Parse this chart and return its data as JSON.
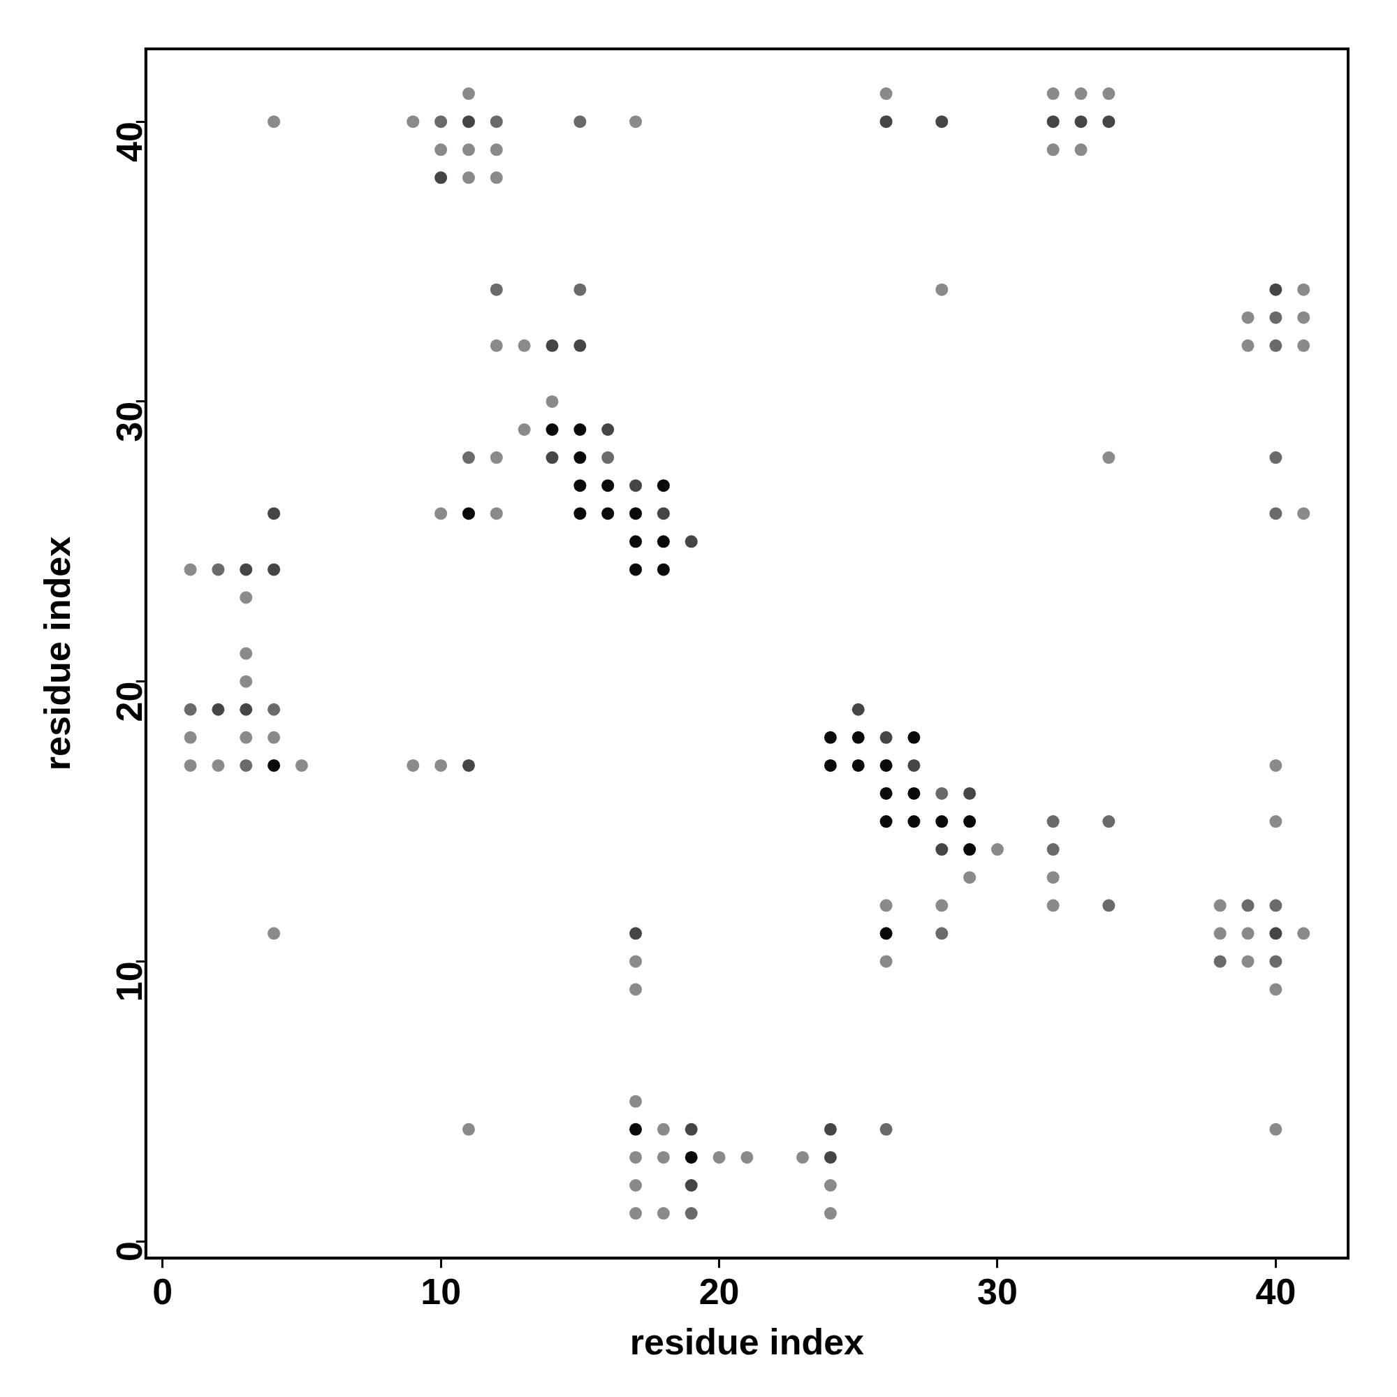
{
  "chart_data": {
    "type": "scatter",
    "xlabel": "residue index",
    "ylabel": "residue index",
    "xlim": [
      -0.6,
      42.6
    ],
    "ylim": [
      -0.6,
      42.6
    ],
    "xticks": [
      0,
      10,
      20,
      30,
      40
    ],
    "yticks": [
      0,
      10,
      20,
      30,
      40
    ],
    "grid": false,
    "legend": false,
    "marker": "circle",
    "x": [
      11,
      26,
      32,
      33,
      34,
      4,
      9,
      10,
      11,
      12,
      15,
      17,
      26,
      28,
      32,
      33,
      34,
      10,
      11,
      12,
      32,
      33,
      10,
      11,
      12,
      12,
      15,
      28,
      40,
      41,
      39,
      40,
      41,
      12,
      13,
      14,
      15,
      39,
      40,
      41,
      14,
      13,
      14,
      15,
      16,
      11,
      12,
      14,
      15,
      16,
      34,
      40,
      15,
      16,
      17,
      18,
      4,
      10,
      11,
      12,
      15,
      16,
      17,
      18,
      40,
      41,
      17,
      18,
      19,
      1,
      2,
      3,
      4,
      17,
      18,
      3,
      3,
      3,
      1,
      2,
      3,
      4,
      25,
      1,
      3,
      4,
      24,
      25,
      26,
      27,
      1,
      2,
      3,
      4,
      5,
      9,
      10,
      11,
      24,
      25,
      26,
      27,
      40,
      26,
      27,
      28,
      29,
      26,
      27,
      28,
      29,
      32,
      34,
      40,
      28,
      29,
      30,
      32,
      29,
      32,
      26,
      28,
      32,
      34,
      38,
      39,
      40,
      4,
      17,
      26,
      28,
      38,
      39,
      40,
      41,
      17,
      26,
      38,
      39,
      40,
      17,
      40,
      17,
      11,
      17,
      18,
      19,
      24,
      26,
      40,
      17,
      18,
      19,
      20,
      21,
      23,
      24,
      17,
      19,
      24,
      17,
      18,
      19,
      24
    ],
    "values": [
      41,
      41,
      41,
      41,
      41,
      40,
      40,
      40,
      40,
      40,
      40,
      40,
      40,
      40,
      40,
      40,
      40,
      39,
      39,
      39,
      39,
      39,
      38,
      38,
      38,
      34,
      34,
      34,
      34,
      34,
      33,
      33,
      33,
      32,
      32,
      32,
      32,
      32,
      32,
      32,
      30,
      29,
      29,
      29,
      29,
      28,
      28,
      28,
      28,
      28,
      28,
      28,
      27,
      27,
      27,
      27,
      26,
      26,
      26,
      26,
      26,
      26,
      26,
      26,
      26,
      26,
      25,
      25,
      25,
      24,
      24,
      24,
      24,
      24,
      24,
      23,
      21,
      20,
      19,
      19,
      19,
      19,
      19,
      18,
      18,
      18,
      18,
      18,
      18,
      18,
      17,
      17,
      17,
      17,
      17,
      17,
      17,
      17,
      17,
      17,
      17,
      17,
      17,
      16,
      16,
      16,
      16,
      15,
      15,
      15,
      15,
      15,
      15,
      15,
      14,
      14,
      14,
      14,
      13,
      13,
      12,
      12,
      12,
      12,
      12,
      12,
      12,
      11,
      11,
      11,
      11,
      11,
      11,
      11,
      11,
      10,
      10,
      10,
      10,
      10,
      9,
      9,
      5,
      4,
      4,
      4,
      4,
      4,
      4,
      4,
      3,
      3,
      3,
      3,
      3,
      3,
      3,
      2,
      2,
      2,
      1,
      1,
      1,
      1
    ],
    "colors": [
      "#8a8a8a",
      "#8a8a8a",
      "#8a8a8a",
      "#8a8a8a",
      "#8a8a8a",
      "#8a8a8a",
      "#8a8a8a",
      "#6a6a6a",
      "#454545",
      "#6a6a6a",
      "#6a6a6a",
      "#8a8a8a",
      "#454545",
      "#454545",
      "#454545",
      "#454545",
      "#454545",
      "#8a8a8a",
      "#8a8a8a",
      "#8a8a8a",
      "#8a8a8a",
      "#8a8a8a",
      "#454545",
      "#8a8a8a",
      "#8a8a8a",
      "#6a6a6a",
      "#6a6a6a",
      "#8a8a8a",
      "#454545",
      "#8a8a8a",
      "#8a8a8a",
      "#6a6a6a",
      "#8a8a8a",
      "#8a8a8a",
      "#8a8a8a",
      "#454545",
      "#454545",
      "#8a8a8a",
      "#6a6a6a",
      "#8a8a8a",
      "#8a8a8a",
      "#8a8a8a",
      "#0a0a0a",
      "#0a0a0a",
      "#454545",
      "#6a6a6a",
      "#8a8a8a",
      "#454545",
      "#0a0a0a",
      "#6a6a6a",
      "#8a8a8a",
      "#6a6a6a",
      "#0a0a0a",
      "#0a0a0a",
      "#454545",
      "#0a0a0a",
      "#454545",
      "#8a8a8a",
      "#0a0a0a",
      "#8a8a8a",
      "#0a0a0a",
      "#0a0a0a",
      "#0a0a0a",
      "#454545",
      "#6a6a6a",
      "#8a8a8a",
      "#0a0a0a",
      "#0a0a0a",
      "#454545",
      "#8a8a8a",
      "#6a6a6a",
      "#454545",
      "#454545",
      "#0a0a0a",
      "#0a0a0a",
      "#8a8a8a",
      "#8a8a8a",
      "#8a8a8a",
      "#6a6a6a",
      "#454545",
      "#454545",
      "#6a6a6a",
      "#454545",
      "#8a8a8a",
      "#8a8a8a",
      "#8a8a8a",
      "#0a0a0a",
      "#0a0a0a",
      "#454545",
      "#0a0a0a",
      "#8a8a8a",
      "#8a8a8a",
      "#6a6a6a",
      "#0a0a0a",
      "#8a8a8a",
      "#8a8a8a",
      "#8a8a8a",
      "#454545",
      "#0a0a0a",
      "#0a0a0a",
      "#0a0a0a",
      "#454545",
      "#8a8a8a",
      "#0a0a0a",
      "#0a0a0a",
      "#6a6a6a",
      "#454545",
      "#0a0a0a",
      "#0a0a0a",
      "#0a0a0a",
      "#0a0a0a",
      "#6a6a6a",
      "#6a6a6a",
      "#8a8a8a",
      "#454545",
      "#0a0a0a",
      "#8a8a8a",
      "#6a6a6a",
      "#8a8a8a",
      "#8a8a8a",
      "#8a8a8a",
      "#8a8a8a",
      "#8a8a8a",
      "#6a6a6a",
      "#8a8a8a",
      "#6a6a6a",
      "#6a6a6a",
      "#8a8a8a",
      "#454545",
      "#0a0a0a",
      "#6a6a6a",
      "#8a8a8a",
      "#8a8a8a",
      "#454545",
      "#8a8a8a",
      "#8a8a8a",
      "#8a8a8a",
      "#6a6a6a",
      "#8a8a8a",
      "#6a6a6a",
      "#8a8a8a",
      "#8a8a8a",
      "#8a8a8a",
      "#8a8a8a",
      "#0a0a0a",
      "#8a8a8a",
      "#454545",
      "#454545",
      "#6a6a6a",
      "#8a8a8a",
      "#8a8a8a",
      "#8a8a8a",
      "#0a0a0a",
      "#8a8a8a",
      "#8a8a8a",
      "#8a8a8a",
      "#454545",
      "#8a8a8a",
      "#454545",
      "#8a8a8a",
      "#8a8a8a",
      "#8a8a8a",
      "#6a6a6a",
      "#8a8a8a"
    ]
  }
}
